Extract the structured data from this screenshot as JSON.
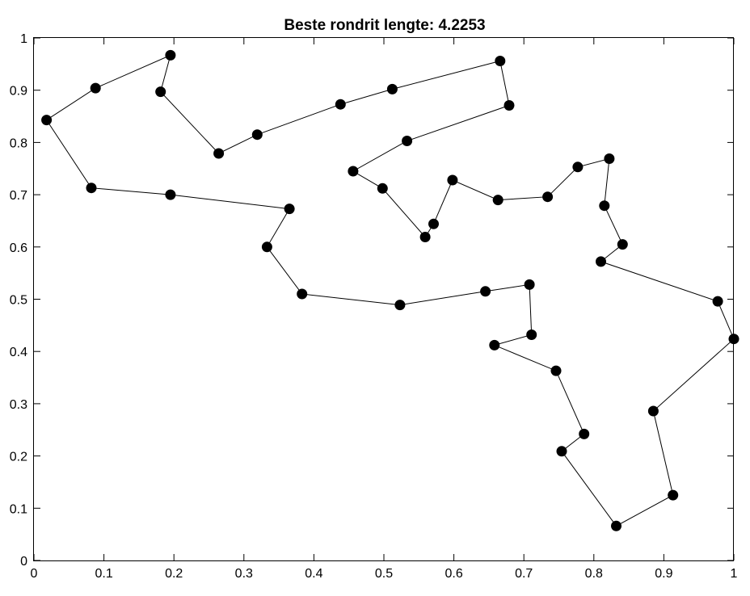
{
  "chart_data": {
    "type": "line",
    "title": "Beste rondrit lengte: 4.2253",
    "xlabel": "",
    "ylabel": "",
    "xlim": [
      0,
      1
    ],
    "ylim": [
      0,
      1
    ],
    "xticks": [
      "0",
      "0.1",
      "0.2",
      "0.3",
      "0.4",
      "0.5",
      "0.6",
      "0.7",
      "0.8",
      "0.9",
      "1"
    ],
    "yticks": [
      "0",
      "0.1",
      "0.2",
      "0.3",
      "0.4",
      "0.5",
      "0.6",
      "0.7",
      "0.8",
      "0.9",
      "1"
    ],
    "grid": false,
    "marker": "filled-circle",
    "line_color": "#000000",
    "marker_color": "#000000",
    "series": [
      {
        "points": [
          [
            0.018,
            0.843
          ],
          [
            0.088,
            0.904
          ],
          [
            0.195,
            0.967
          ],
          [
            0.181,
            0.897
          ],
          [
            0.264,
            0.779
          ],
          [
            0.319,
            0.815
          ],
          [
            0.438,
            0.873
          ],
          [
            0.512,
            0.902
          ],
          [
            0.666,
            0.956
          ],
          [
            0.679,
            0.871
          ],
          [
            0.533,
            0.803
          ],
          [
            0.456,
            0.745
          ],
          [
            0.498,
            0.712
          ],
          [
            0.559,
            0.619
          ],
          [
            0.571,
            0.644
          ],
          [
            0.598,
            0.728
          ],
          [
            0.663,
            0.69
          ],
          [
            0.734,
            0.696
          ],
          [
            0.777,
            0.753
          ],
          [
            0.822,
            0.769
          ],
          [
            0.815,
            0.679
          ],
          [
            0.841,
            0.605
          ],
          [
            0.81,
            0.572
          ],
          [
            0.977,
            0.496
          ],
          [
            1.0,
            0.424
          ],
          [
            0.885,
            0.286
          ],
          [
            0.913,
            0.125
          ],
          [
            0.832,
            0.066
          ],
          [
            0.754,
            0.209
          ],
          [
            0.786,
            0.242
          ],
          [
            0.746,
            0.363
          ],
          [
            0.658,
            0.412
          ],
          [
            0.711,
            0.432
          ],
          [
            0.708,
            0.528
          ],
          [
            0.645,
            0.515
          ],
          [
            0.523,
            0.489
          ],
          [
            0.383,
            0.51
          ],
          [
            0.333,
            0.6
          ],
          [
            0.365,
            0.673
          ],
          [
            0.195,
            0.7
          ],
          [
            0.082,
            0.713
          ],
          [
            0.018,
            0.843
          ]
        ]
      }
    ]
  }
}
